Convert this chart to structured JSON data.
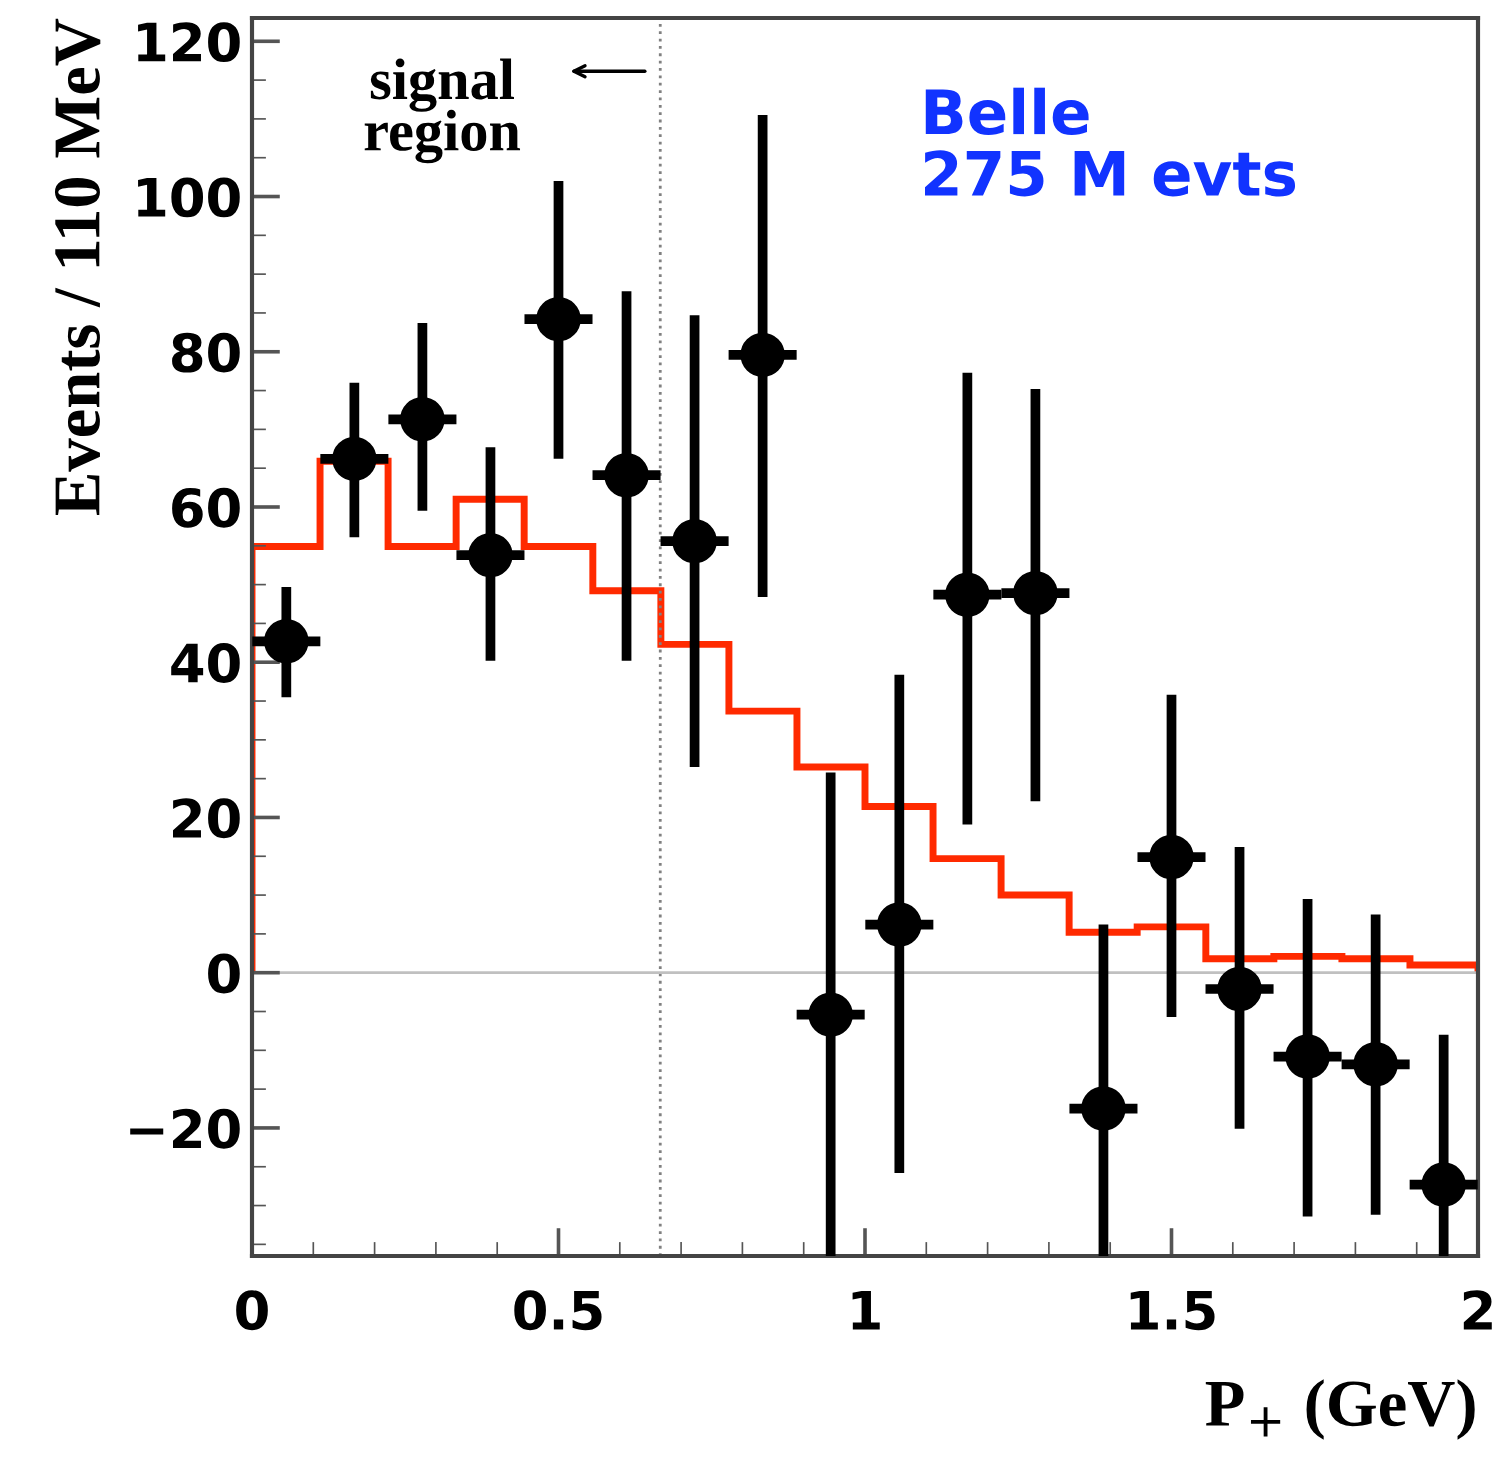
{
  "chart_data": {
    "type": "scatter",
    "xlabel": "P$_{+}$ (GeV)",
    "ylabel": "Events / 110 MeV",
    "annotations": [
      "signal region",
      "Belle\n275 M evts"
    ],
    "xlim": [
      0,
      2
    ],
    "xticks": [
      0,
      0.5,
      1,
      1.5,
      2
    ],
    "ylim": [
      -36.5,
      123
    ],
    "yticks": [
      {
        "value": -20,
        "label": "−20"
      },
      0,
      20,
      40,
      60,
      80,
      100,
      120
    ],
    "ref_lines": [
      {
        "axis": "x",
        "value": 0.666,
        "color": "#808080",
        "line_style": "dotted"
      },
      {
        "axis": "y",
        "value": 0,
        "color": "#c0c0c0",
        "line_style": "solid"
      }
    ],
    "grid": false,
    "legend": false,
    "marker": "circle",
    "series": [
      {
        "type": "histogram",
        "color": "#ff2a00",
        "bins": [
          0,
          0.111,
          0.222,
          0.333,
          0.444,
          0.556,
          0.667,
          0.778,
          0.889,
          1,
          1.111,
          1.222,
          1.333,
          1.444,
          1.556,
          1.667,
          1.778,
          1.889,
          2
        ],
        "values": [
          54.9,
          65.9,
          54.9,
          61.0,
          54.9,
          49.2,
          42.3,
          33.7,
          26.5,
          21.4,
          14.7,
          10.0,
          5.2,
          5.9,
          1.8,
          2.1,
          1.8,
          1.0
        ]
      },
      {
        "color": "#000000",
        "x": [
          0.056,
          0.167,
          0.278,
          0.389,
          0.5,
          0.611,
          0.722,
          0.833,
          0.944,
          1.056,
          1.167,
          1.278,
          1.389,
          1.5,
          1.611,
          1.722,
          1.833,
          1.944
        ],
        "values": [
          42.7,
          66.2,
          71.3,
          53.8,
          84.2,
          64.1,
          55.6,
          79.6,
          -5.4,
          6.2,
          48.7,
          48.9,
          -17.5,
          14.9,
          -2.1,
          -10.8,
          -11.8,
          -27.3
        ],
        "errors": [
          [
            35.5,
            49.7
          ],
          [
            56.1,
            76.0
          ],
          [
            59.5,
            83.7
          ],
          [
            40.2,
            67.7
          ],
          [
            66.2,
            102.0
          ],
          [
            40.2,
            87.8
          ],
          [
            26.5,
            84.7
          ],
          [
            48.4,
            110.5
          ],
          [
            -36.5,
            25.8
          ],
          [
            -25.8,
            38.4
          ],
          [
            19.1,
            77.3
          ],
          [
            22.1,
            75.2
          ],
          [
            -36.5,
            6.2
          ],
          [
            -5.7,
            35.8
          ],
          [
            -20.1,
            16.2
          ],
          [
            -31.4,
            9.5
          ],
          [
            -31.2,
            7.5
          ],
          [
            -36.5,
            -8.0
          ]
        ],
        "xerrors": [
          0.0555,
          0.0555,
          0.0555,
          0.0555,
          0.0555,
          0.0555,
          0.0555,
          0.0555,
          0.0555,
          0.0555,
          0.0555,
          0.0555,
          0.0555,
          0.0555,
          0.0555,
          0.0555,
          0.0555,
          0.0555
        ]
      }
    ]
  }
}
